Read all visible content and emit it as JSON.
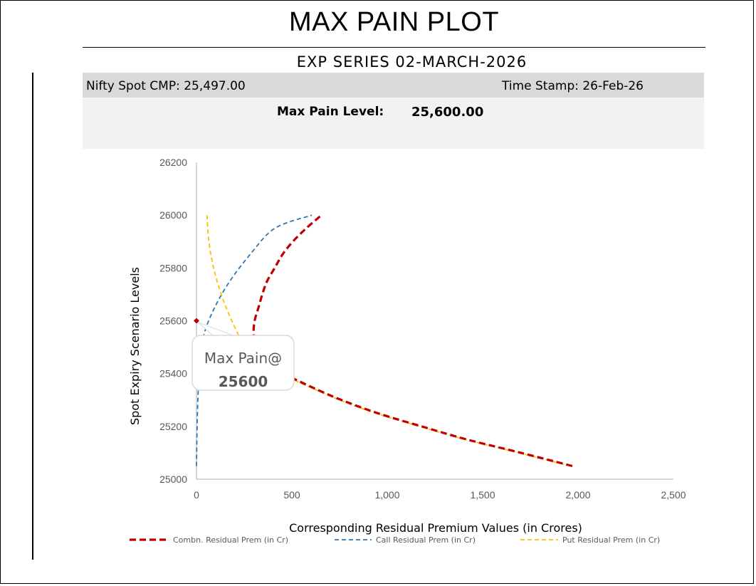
{
  "header": {
    "title": "MAX PAIN PLOT",
    "subtitle": "EXP SERIES  02-MARCH-2026",
    "spot_cmp": "Nifty Spot CMP: 25,497.00",
    "time_stamp": "Time Stamp:  26-Feb-26",
    "max_pain_label": "Max Pain Level:",
    "max_pain_value": "25,600.00"
  },
  "chart_data": {
    "type": "scatter",
    "title": "",
    "xlabel": "Corresponding Residual Premium Values (in Crores)",
    "ylabel": "Spot Expiry  Scenario Levels",
    "xlim": [
      0,
      2500
    ],
    "ylim": [
      25000,
      26200
    ],
    "x_ticks": [
      0,
      500,
      1000,
      1500,
      2000,
      2500
    ],
    "x_tick_labels": [
      "0",
      "500",
      "1,000",
      "1,500",
      "2,000",
      "2,500"
    ],
    "y_ticks": [
      25000,
      25200,
      25400,
      25600,
      25800,
      26000,
      26200
    ],
    "y_tick_labels": [
      "25000",
      "25200",
      "25400",
      "25600",
      "25800",
      "26000",
      "26200"
    ],
    "series": [
      {
        "name": "Combn. Residual Prem (in Cr)",
        "color": "#c00000",
        "style": "dashed-thick",
        "points": [
          [
            1970,
            25050
          ],
          [
            1700,
            25100
          ],
          [
            1420,
            25150
          ],
          [
            1180,
            25200
          ],
          [
            950,
            25250
          ],
          [
            760,
            25300
          ],
          [
            600,
            25350
          ],
          [
            460,
            25400
          ],
          [
            370,
            25450
          ],
          [
            315,
            25500
          ],
          [
            300,
            25550
          ],
          [
            305,
            25600
          ],
          [
            325,
            25650
          ],
          [
            345,
            25700
          ],
          [
            370,
            25750
          ],
          [
            410,
            25800
          ],
          [
            450,
            25850
          ],
          [
            505,
            25900
          ],
          [
            575,
            25950
          ],
          [
            655,
            26000
          ]
        ]
      },
      {
        "name": "Call Residual Prem (in Cr)",
        "color": "#2e75b6",
        "style": "dashed",
        "points": [
          [
            0,
            25050
          ],
          [
            2,
            25150
          ],
          [
            5,
            25250
          ],
          [
            10,
            25350
          ],
          [
            18,
            25450
          ],
          [
            40,
            25550
          ],
          [
            95,
            25650
          ],
          [
            175,
            25750
          ],
          [
            280,
            25850
          ],
          [
            410,
            25950
          ],
          [
            605,
            26000
          ]
        ]
      },
      {
        "name": "Put Residual Prem (in Cr)",
        "color": "#ffc000",
        "style": "dashed",
        "points": [
          [
            1960,
            25050
          ],
          [
            1690,
            25100
          ],
          [
            1410,
            25150
          ],
          [
            1170,
            25200
          ],
          [
            940,
            25250
          ],
          [
            750,
            25300
          ],
          [
            590,
            25350
          ],
          [
            440,
            25400
          ],
          [
            325,
            25450
          ],
          [
            255,
            25500
          ],
          [
            185,
            25600
          ],
          [
            130,
            25700
          ],
          [
            90,
            25800
          ],
          [
            65,
            25900
          ],
          [
            55,
            26000
          ]
        ]
      }
    ],
    "annotation": {
      "text_line1": "Max Pain@",
      "text_line2": "25600",
      "x": 0,
      "y": 25600
    },
    "legend": "bottom"
  }
}
